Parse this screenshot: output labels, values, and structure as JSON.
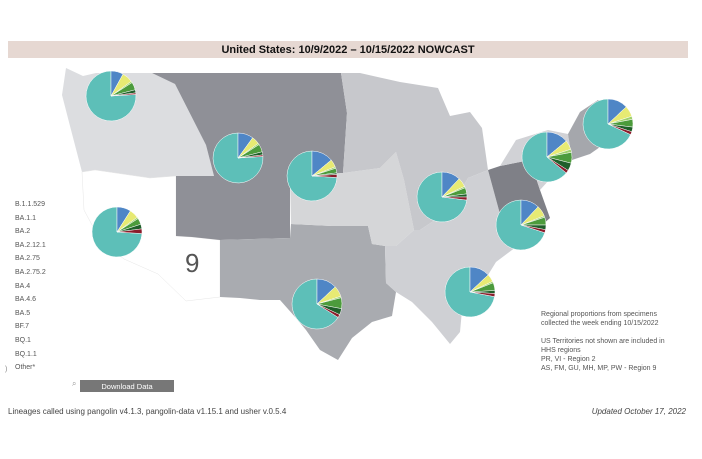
{
  "header": {
    "title": "United States: 10/9/2022 – 10/15/2022 NOWCAST"
  },
  "legend": {
    "items": [
      "B.1.1.529",
      "BA.1.1",
      "BA.2",
      "BA.2.12.1",
      "BA.2.75",
      "BA.2.75.2",
      "BA.4",
      "BA.4.6",
      "BA.5",
      "BF.7",
      "BQ.1",
      "BQ.1.1",
      "Other*"
    ]
  },
  "region_label": "9",
  "download_button": {
    "label": "Download Data",
    "icon": "search-icon"
  },
  "notes": {
    "line1": "Regional proportions from specimens",
    "line2": "collected the week ending 10/15/2022",
    "line3": "US Territories not shown are included in",
    "line4": "HHS regions",
    "line5": "PR, VI - Region 2",
    "line6": "AS, FM, GU, MH, MP, PW - Region 9"
  },
  "footer": {
    "left": "Lineages called using pangolin v4.1.3, pangolin-data v1.15.1 and usher v.0.5.4",
    "right": "Updated October 17, 2022"
  },
  "colors": {
    "BA.5": "#5dbfb8",
    "BA.4.6": "#4f86c6",
    "BF.7": "#e7ea73",
    "BQ.1": "#4c9b3c",
    "BQ.1.1": "#1f5f2a",
    "BA.2.75": "#9fd16b",
    "BA.2.75.2": "#8a1c2b",
    "Other": "#7a3a8a"
  },
  "regions": [
    {
      "region": "1",
      "slices": {
        "BA.5": 68,
        "BA.4.6": 13,
        "BF.7": 7,
        "BQ.1": 5,
        "BQ.1.1": 3,
        "BA.2.75": 2,
        "BA.2.75.2": 2
      }
    },
    {
      "region": "2",
      "slices": {
        "BA.5": 64,
        "BA.4.6": 14,
        "BF.7": 6,
        "BQ.1": 7,
        "BQ.1.1": 5,
        "BA.2.75": 2,
        "BA.2.75.2": 2
      }
    },
    {
      "region": "3",
      "slices": {
        "BA.5": 70,
        "BA.4.6": 12,
        "BF.7": 7,
        "BQ.1": 5,
        "BQ.1.1": 3,
        "BA.2.75": 1,
        "BA.2.75.2": 2
      }
    },
    {
      "region": "4",
      "slices": {
        "BA.5": 72,
        "BA.4.6": 13,
        "BF.7": 5,
        "BQ.1": 5,
        "BQ.1.1": 2,
        "BA.2.75": 1,
        "BA.2.75.2": 2
      }
    },
    {
      "region": "5",
      "slices": {
        "BA.5": 73,
        "BA.4.6": 12,
        "BF.7": 6,
        "BQ.1": 4,
        "BQ.1.1": 2,
        "BA.2.75": 1,
        "BA.2.75.2": 2
      }
    },
    {
      "region": "6",
      "slices": {
        "BA.5": 66,
        "BA.4.6": 13,
        "BF.7": 7,
        "BQ.1": 7,
        "BQ.1.1": 4,
        "BA.2.75": 1,
        "BA.2.75.2": 2
      }
    },
    {
      "region": "7",
      "slices": {
        "BA.5": 74,
        "BA.4.6": 14,
        "BF.7": 5,
        "BQ.1": 3,
        "BQ.1.1": 1,
        "BA.2.75": 1,
        "BA.2.75.2": 2
      }
    },
    {
      "region": "8",
      "slices": {
        "BA.5": 76,
        "BA.4.6": 10,
        "BF.7": 5,
        "BQ.1": 5,
        "BQ.1.1": 2,
        "BA.2.75": 1,
        "BA.2.75.2": 1
      }
    },
    {
      "region": "9",
      "slices": {
        "BA.5": 74,
        "BA.4.6": 9,
        "BF.7": 6,
        "BQ.1": 4,
        "BQ.1.1": 3,
        "BA.2.75": 1,
        "BA.2.75.2": 3
      }
    },
    {
      "region": "10",
      "slices": {
        "BA.5": 76,
        "BA.4.6": 8,
        "BF.7": 7,
        "BQ.1": 5,
        "BQ.1.1": 2,
        "BA.2.75": 1,
        "BA.2.75.2": 1
      }
    }
  ]
}
